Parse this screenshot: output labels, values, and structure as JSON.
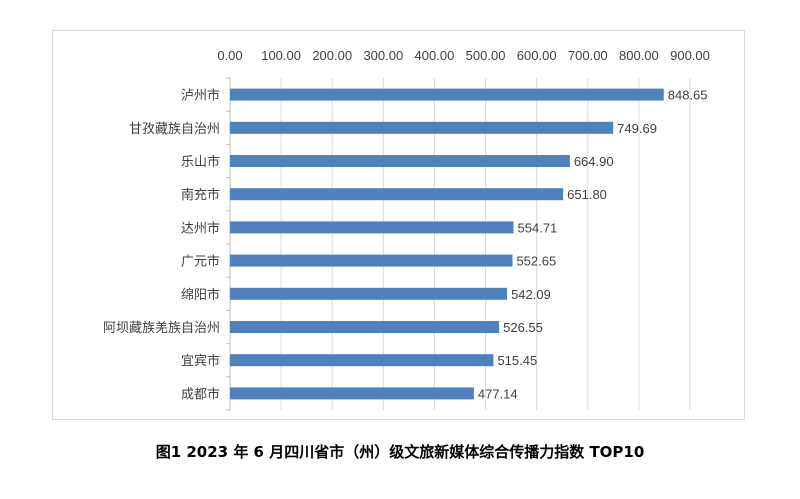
{
  "chart_data": {
    "type": "bar",
    "orientation": "horizontal",
    "categories": [
      "泸州市",
      "甘孜藏族自治州",
      "乐山市",
      "南充市",
      "达州市",
      "广元市",
      "绵阳市",
      "阿坝藏族羌族自治州",
      "宜宾市",
      "成都市"
    ],
    "values": [
      848.65,
      749.69,
      664.9,
      651.8,
      554.71,
      552.65,
      542.09,
      526.55,
      515.45,
      477.14
    ],
    "value_labels": [
      "848.65",
      "749.69",
      "664.90",
      "651.80",
      "554.71",
      "552.65",
      "542.09",
      "526.55",
      "515.45",
      "477.14"
    ],
    "xlim": [
      0,
      900
    ],
    "ticks": [
      "0.00",
      "100.00",
      "200.00",
      "300.00",
      "400.00",
      "500.00",
      "600.00",
      "700.00",
      "800.00",
      "900.00"
    ],
    "axis_position": "top",
    "grid": true,
    "bar_color": "#4f81bd",
    "title": "",
    "xlabel": "",
    "ylabel": ""
  },
  "caption": "图1   2023 年 6 月四川省市（州）级文旅新媒体综合传播力指数 TOP10"
}
